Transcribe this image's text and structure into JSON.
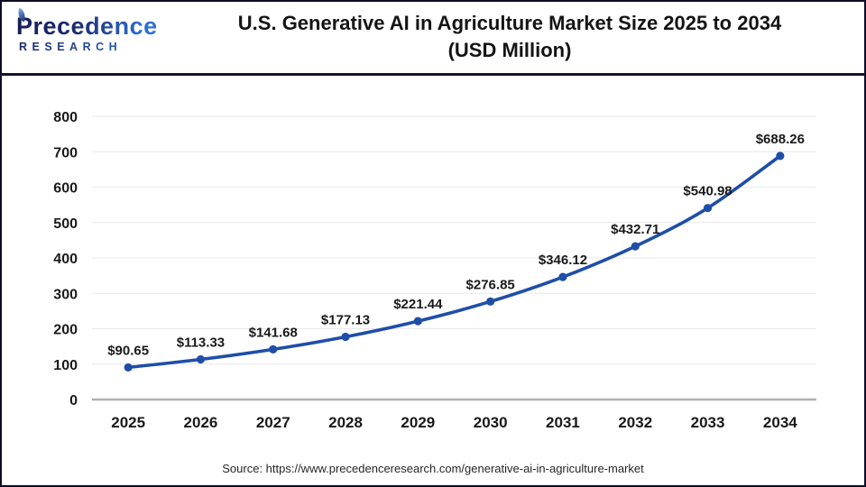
{
  "header": {
    "logo": {
      "brand": "Precedence",
      "subtitle": "RESEARCH"
    },
    "title_line1": "U.S. Generative AI in Agriculture Market Size 2025 to 2034",
    "title_line2": "(USD Million)"
  },
  "chart_data": {
    "type": "line",
    "title": "U.S. Generative AI in Agriculture Market Size 2025 to 2034 (USD Million)",
    "categories": [
      "2025",
      "2026",
      "2027",
      "2028",
      "2029",
      "2030",
      "2031",
      "2032",
      "2033",
      "2034"
    ],
    "values": [
      90.65,
      113.33,
      141.68,
      177.13,
      221.44,
      276.85,
      346.12,
      432.71,
      540.98,
      688.26
    ],
    "labels": [
      "$90.65",
      "$113.33",
      "$141.68",
      "$177.13",
      "$221.44",
      "$276.85",
      "$346.12",
      "$432.71",
      "$540.98",
      "$688.26"
    ],
    "xlabel": "",
    "ylabel": "",
    "ylim": [
      0,
      800
    ],
    "yticks": [
      0,
      100,
      200,
      300,
      400,
      500,
      600,
      700,
      800
    ],
    "grid": true,
    "legend": "none",
    "line_color": "#1f4ea8",
    "marker": "circle"
  },
  "footer": {
    "source": "Source: https://www.precedenceresearch.com/generative-ai-in-agriculture-market"
  },
  "colors": {
    "grid": "#e8e8e8",
    "axis": "#b0b0b0",
    "divider": "#13132f",
    "border": "#0c0c24",
    "text": "#1a1a1a",
    "logo_navy": "#1b2a6b",
    "logo_blue": "#2f6fd0"
  }
}
